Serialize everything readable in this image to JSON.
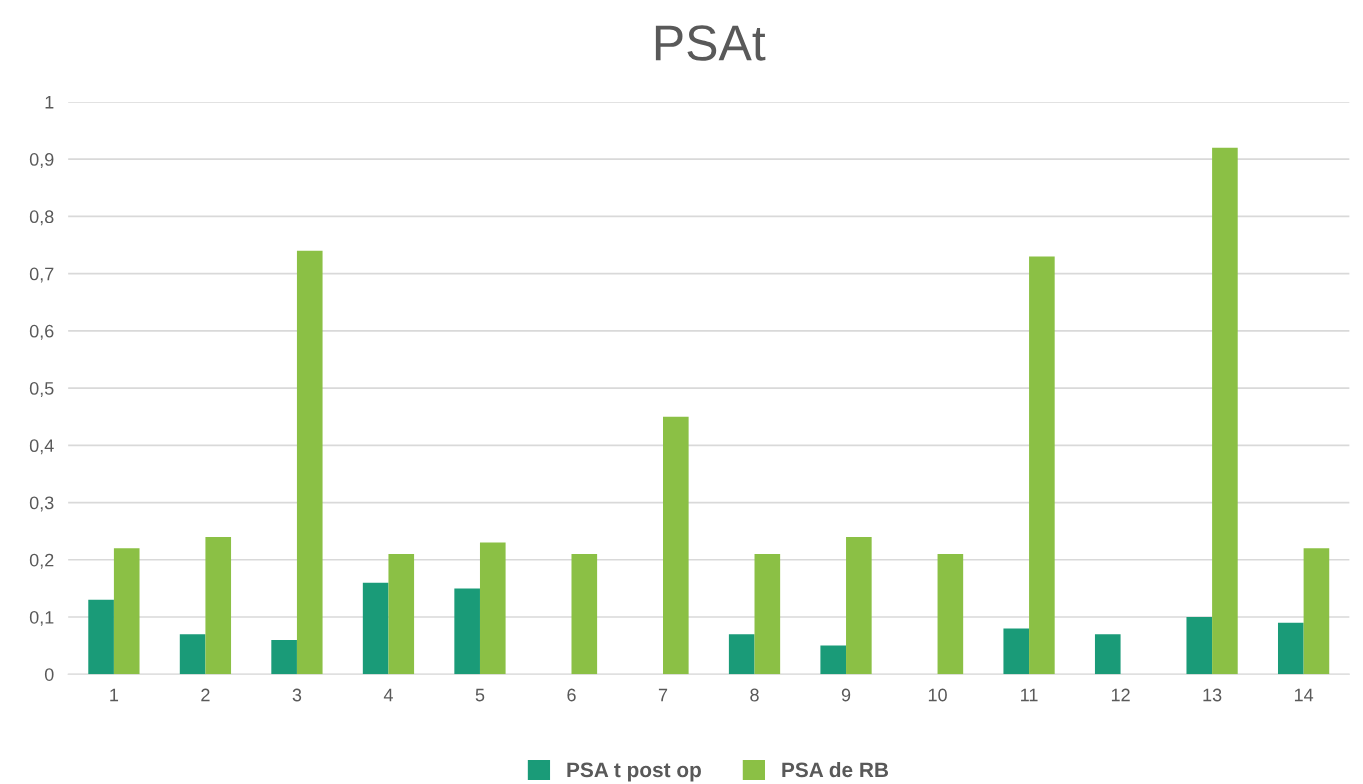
{
  "chart_data": {
    "type": "bar",
    "title": "PSAt",
    "categories": [
      "1",
      "2",
      "3",
      "4",
      "5",
      "6",
      "7",
      "8",
      "9",
      "10",
      "11",
      "12",
      "13",
      "14"
    ],
    "series": [
      {
        "name": "PSA t post op",
        "color": "#1a9b78",
        "values": [
          0.13,
          0.07,
          0.06,
          0.16,
          0.15,
          null,
          null,
          0.07,
          0.05,
          0,
          0.08,
          0.07,
          0.1,
          0.09
        ]
      },
      {
        "name": "PSA de RB",
        "color": "#8bc045",
        "values": [
          0.22,
          0.24,
          0.74,
          0.21,
          0.23,
          0.21,
          0.45,
          0.21,
          0.24,
          0.21,
          0.73,
          null,
          0.92,
          0.22
        ]
      }
    ],
    "ylim": [
      0,
      1
    ],
    "yticks": [
      0,
      {
        "value": 0.1,
        "label": "0,1"
      },
      {
        "value": 0.2,
        "label": "0,2"
      },
      {
        "value": 0.3,
        "label": "0,3"
      },
      {
        "value": 0.4,
        "label": "0,4"
      },
      {
        "value": 0.5,
        "label": "0,5"
      },
      {
        "value": 0.6,
        "label": "0,6"
      },
      {
        "value": 0.7,
        "label": "0,7"
      },
      {
        "value": 0.8,
        "label": "0,8"
      },
      {
        "value": 0.9,
        "label": "0,9"
      },
      1
    ],
    "grid": "y",
    "legend": "bottom"
  }
}
